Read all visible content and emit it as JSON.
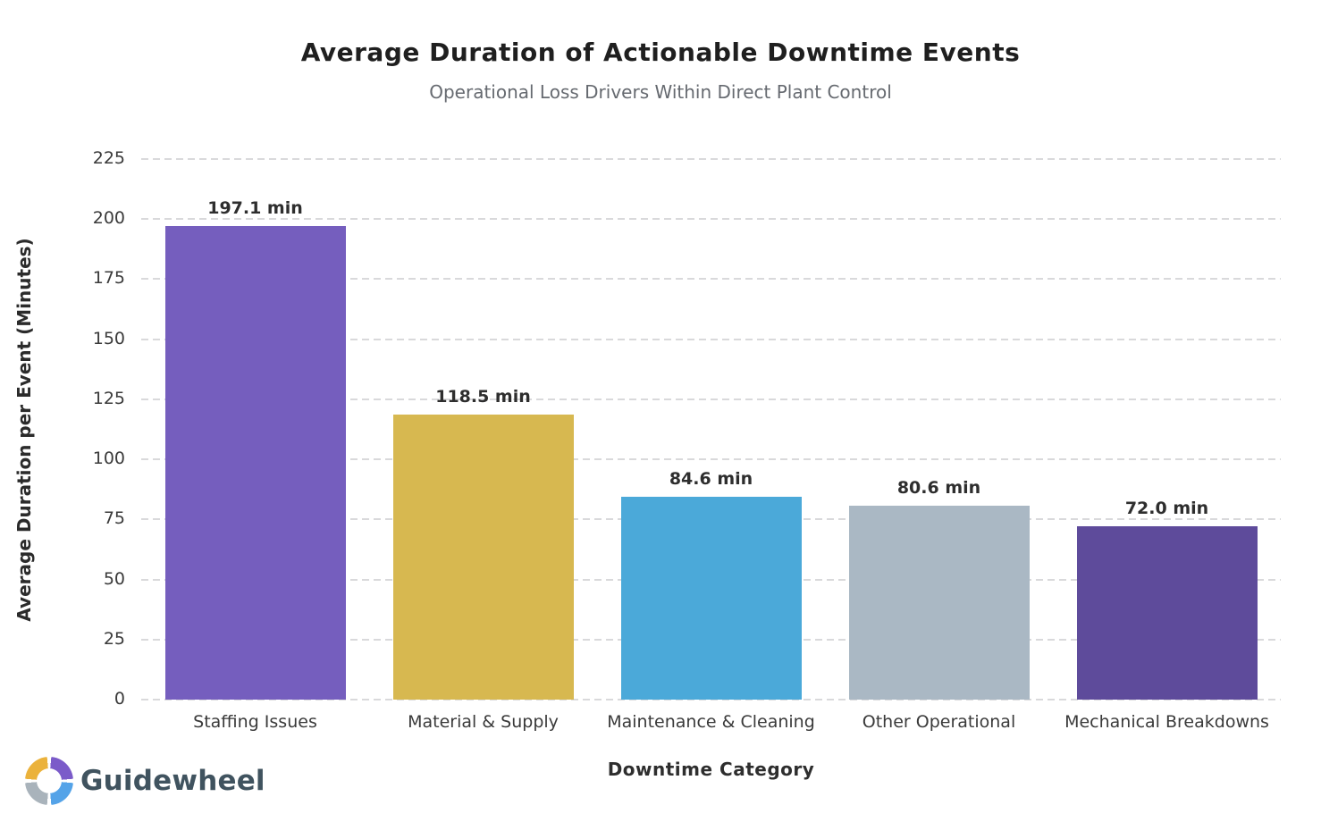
{
  "header": {
    "title": "Average Duration of Actionable Downtime Events",
    "subtitle": "Operational Loss Drivers Within Direct Plant Control"
  },
  "chart_data": {
    "type": "bar",
    "title": "Average Duration of Actionable Downtime Events",
    "subtitle": "Operational Loss Drivers Within Direct Plant Control",
    "xlabel": "Downtime Category",
    "ylabel": "Average Duration per Event (Minutes)",
    "categories": [
      "Staffing Issues",
      "Material & Supply",
      "Maintenance & Cleaning",
      "Other Operational",
      "Mechanical Breakdowns"
    ],
    "values": [
      197.1,
      118.5,
      84.6,
      80.6,
      72.0
    ],
    "value_labels": [
      "197.1 min",
      "118.5 min",
      "84.6 min",
      "80.6 min",
      "72.0 min"
    ],
    "bar_colors": [
      "#755EBE",
      "#D7B850",
      "#4BA9D9",
      "#AAB8C4",
      "#5E4B9B"
    ],
    "yticks": [
      0,
      25,
      50,
      75,
      100,
      125,
      150,
      175,
      200,
      225
    ],
    "ylim": [
      0,
      225
    ],
    "grid": "horizontal-dashed",
    "gridline_color": "#d9d9db",
    "legend": "none"
  },
  "branding": {
    "wordmark": "Guidewheel",
    "wordmark_color": "#40535f",
    "logo_icon": "segmented-wheel-icon",
    "logo_colors": {
      "top_left": "#EBB23B",
      "top_right": "#7B5BC9",
      "bottom_right": "#54A3E8",
      "bottom_left": "#A9B3BB"
    }
  }
}
